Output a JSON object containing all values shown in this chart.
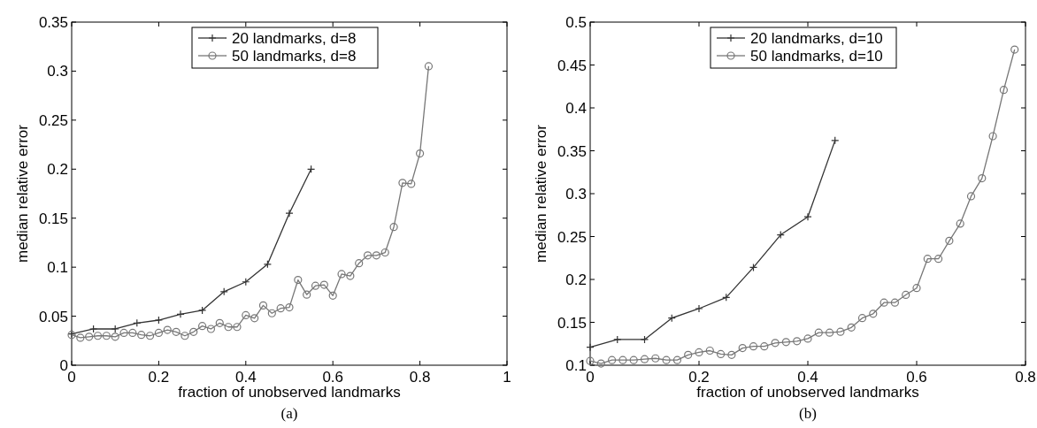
{
  "chart_data": [
    {
      "type": "line",
      "xlabel": "fraction of unobserved landmarks",
      "ylabel": "median relative error",
      "annotations": [
        "(a)"
      ],
      "xlim": [
        0,
        1
      ],
      "xticks": [
        0,
        0.2,
        0.4,
        0.6,
        0.8,
        1
      ],
      "ylim": [
        0,
        0.35
      ],
      "yticks": [
        0,
        0.05,
        0.1,
        0.15,
        0.2,
        0.25,
        0.3,
        0.35
      ],
      "legend": "top",
      "grid": false,
      "line_style": "solid",
      "series": [
        {
          "name": "20 landmarks, d=8",
          "color": "#333333",
          "marker": "cross",
          "x": [
            0,
            0.05,
            0.1,
            0.15,
            0.2,
            0.25,
            0.3,
            0.35,
            0.4,
            0.45,
            0.5,
            0.55
          ],
          "values": [
            0.032,
            0.037,
            0.037,
            0.043,
            0.046,
            0.052,
            0.056,
            0.075,
            0.085,
            0.103,
            0.155,
            0.2
          ]
        },
        {
          "name": "50 landmarks, d=8",
          "color": "#777777",
          "marker": "circle",
          "x": [
            0,
            0.02,
            0.04,
            0.06,
            0.08,
            0.1,
            0.12,
            0.14,
            0.16,
            0.18,
            0.2,
            0.22,
            0.24,
            0.26,
            0.28,
            0.3,
            0.32,
            0.34,
            0.36,
            0.38,
            0.4,
            0.42,
            0.44,
            0.46,
            0.48,
            0.5,
            0.52,
            0.54,
            0.56,
            0.58,
            0.6,
            0.62,
            0.64,
            0.66,
            0.68,
            0.7,
            0.72,
            0.74,
            0.76,
            0.78,
            0.8,
            0.82
          ],
          "values": [
            0.031,
            0.028,
            0.029,
            0.03,
            0.03,
            0.029,
            0.033,
            0.033,
            0.031,
            0.03,
            0.033,
            0.036,
            0.034,
            0.03,
            0.034,
            0.04,
            0.037,
            0.043,
            0.039,
            0.039,
            0.051,
            0.048,
            0.061,
            0.053,
            0.058,
            0.059,
            0.087,
            0.072,
            0.081,
            0.082,
            0.071,
            0.093,
            0.091,
            0.104,
            0.112,
            0.112,
            0.115,
            0.141,
            0.186,
            0.185,
            0.216,
            0.305
          ]
        }
      ]
    },
    {
      "type": "line",
      "xlabel": "fraction of unobserved landmarks",
      "ylabel": "median relative error",
      "annotations": [
        "(b)"
      ],
      "xlim": [
        0,
        0.8
      ],
      "xticks": [
        0,
        0.2,
        0.4,
        0.6,
        0.8
      ],
      "ylim": [
        0.1,
        0.5
      ],
      "yticks": [
        0.1,
        0.15,
        0.2,
        0.25,
        0.3,
        0.35,
        0.4,
        0.45,
        0.5
      ],
      "legend": "top",
      "grid": false,
      "line_style": "solid",
      "series": [
        {
          "name": "20 landmarks, d=10",
          "color": "#333333",
          "marker": "cross",
          "x": [
            0,
            0.05,
            0.1,
            0.15,
            0.2,
            0.25,
            0.3,
            0.35,
            0.4,
            0.45
          ],
          "values": [
            0.121,
            0.13,
            0.13,
            0.155,
            0.166,
            0.179,
            0.214,
            0.252,
            0.273,
            0.362
          ]
        },
        {
          "name": "50 landmarks, d=10",
          "color": "#777777",
          "marker": "circle",
          "x": [
            0,
            0.02,
            0.04,
            0.06,
            0.08,
            0.1,
            0.12,
            0.14,
            0.16,
            0.18,
            0.2,
            0.22,
            0.24,
            0.26,
            0.28,
            0.3,
            0.32,
            0.34,
            0.36,
            0.38,
            0.4,
            0.42,
            0.44,
            0.46,
            0.48,
            0.5,
            0.52,
            0.54,
            0.56,
            0.58,
            0.6,
            0.62,
            0.64,
            0.66,
            0.68,
            0.7,
            0.72,
            0.74,
            0.76,
            0.78
          ],
          "values": [
            0.105,
            0.102,
            0.106,
            0.106,
            0.106,
            0.107,
            0.108,
            0.106,
            0.106,
            0.112,
            0.115,
            0.117,
            0.113,
            0.112,
            0.12,
            0.122,
            0.122,
            0.126,
            0.127,
            0.128,
            0.131,
            0.138,
            0.138,
            0.139,
            0.144,
            0.155,
            0.16,
            0.173,
            0.173,
            0.182,
            0.19,
            0.224,
            0.224,
            0.245,
            0.265,
            0.297,
            0.318,
            0.367,
            0.421,
            0.468
          ]
        }
      ]
    }
  ]
}
